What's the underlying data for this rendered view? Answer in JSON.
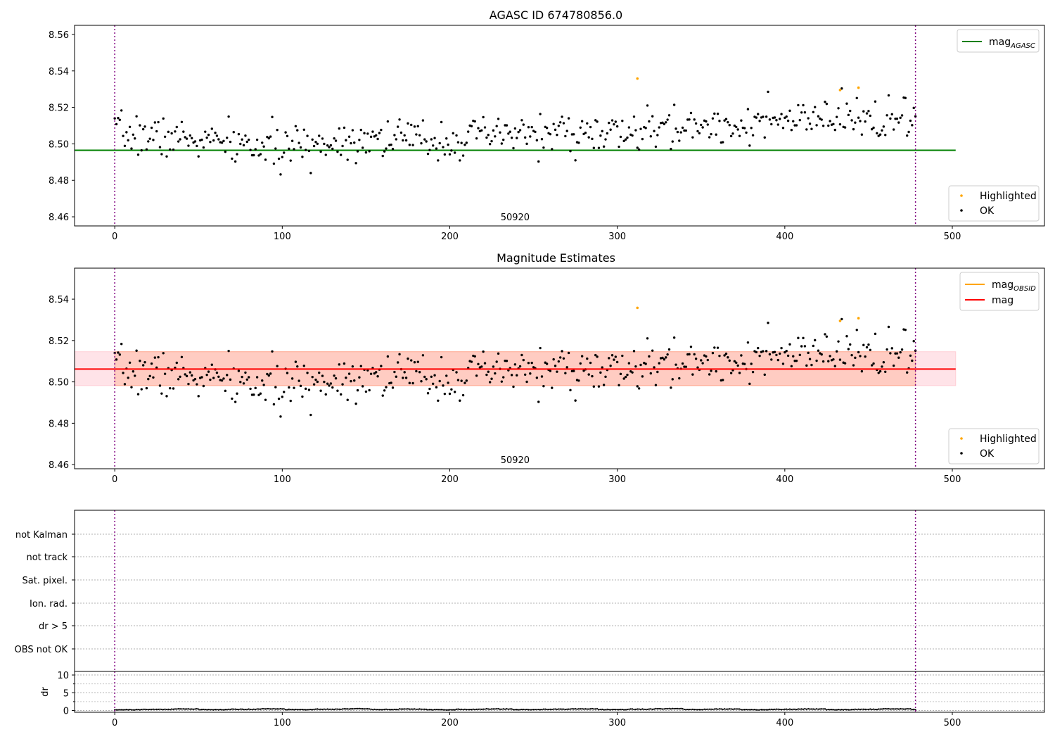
{
  "chart_data": [
    {
      "type": "scatter",
      "title": "AGASC ID 674780856.0",
      "annotation": "50920",
      "xlim": [
        -24,
        555
      ],
      "ylim": [
        8.455,
        8.565
      ],
      "xticks": [
        0,
        100,
        200,
        300,
        400,
        500
      ],
      "yticks": [
        8.46,
        8.48,
        8.5,
        8.52,
        8.54,
        8.56
      ],
      "vlines": [
        0,
        478
      ],
      "grid": false,
      "hlines": [
        {
          "name": "mag_AGASC",
          "y": 8.4965,
          "x_range": [
            -24,
            502
          ],
          "color": "#008000"
        }
      ],
      "legend_upper": {
        "placement": "upper-right",
        "entries": [
          {
            "label": "mag",
            "sub": "AGASC",
            "color": "#008000"
          }
        ]
      },
      "legend_lower": {
        "placement": "lower-right",
        "entries": [
          {
            "label": "Highlighted",
            "color": "#ffa500"
          },
          {
            "label": "OK",
            "color": "#000000"
          }
        ]
      },
      "series": [
        {
          "name": "OK",
          "color": "#000000",
          "n": 479,
          "x_start": 0,
          "x_end": 478,
          "trend_x": [
            0,
            50,
            100,
            150,
            200,
            250,
            300,
            350,
            400,
            450,
            478
          ],
          "trend_y": [
            8.506,
            8.502,
            8.497,
            8.504,
            8.502,
            8.506,
            8.505,
            8.51,
            8.512,
            8.514,
            8.512
          ],
          "scatter": 0.0055
        },
        {
          "name": "Highlighted",
          "color": "#ffa500",
          "x": [
            312,
            433,
            444
          ],
          "y": [
            8.5358,
            8.5295,
            8.5308
          ]
        }
      ]
    },
    {
      "type": "scatter",
      "title": "Magnitude Estimates",
      "annotation": "50920",
      "xlim": [
        -24,
        555
      ],
      "ylim": [
        8.458,
        8.555
      ],
      "xticks": [
        0,
        100,
        200,
        300,
        400,
        500
      ],
      "yticks": [
        8.46,
        8.48,
        8.5,
        8.52,
        8.54
      ],
      "vlines": [
        0,
        478
      ],
      "grid": false,
      "hlines": [
        {
          "name": "mag",
          "y": 8.5062,
          "x_range": [
            -24,
            502
          ],
          "color": "#ff0000"
        }
      ],
      "bands": [
        {
          "y_range": [
            8.4982,
            8.5146
          ],
          "x_range": [
            -24,
            502
          ],
          "color": "#ffc0cb",
          "opacity": 0.45
        },
        {
          "y_range": [
            8.4982,
            8.5146
          ],
          "x_range": [
            0,
            478
          ],
          "color": "#ffa07a",
          "opacity": 0.35
        }
      ],
      "legend_upper": {
        "placement": "upper-right",
        "entries": [
          {
            "label": "mag",
            "sub": "OBSID",
            "color": "#ffa500"
          },
          {
            "label": "mag",
            "color": "#ff0000"
          }
        ]
      },
      "legend_lower": {
        "placement": "lower-right",
        "entries": [
          {
            "label": "Highlighted",
            "color": "#ffa500"
          },
          {
            "label": "OK",
            "color": "#000000"
          }
        ]
      }
    },
    {
      "type": "scatter",
      "flag_labels": [
        "not Kalman",
        "not track",
        "Sat. pixel.",
        "Ion. rad.",
        "dr > 5",
        "OBS not OK"
      ],
      "xlim": [
        -24,
        555
      ],
      "vlines": [
        0,
        478
      ],
      "grid": true
    },
    {
      "type": "line",
      "ylabel": "dr",
      "xlim": [
        -24,
        555
      ],
      "ylim": [
        -0.5,
        11
      ],
      "xticks": [
        0,
        100,
        200,
        300,
        400,
        500
      ],
      "yticks": [
        0,
        5,
        10
      ],
      "vlines": [
        0,
        478
      ],
      "grid": true,
      "series": [
        {
          "name": "dr",
          "color": "#000000",
          "n": 479,
          "typical": 0.35,
          "max": 0.8
        }
      ]
    }
  ]
}
